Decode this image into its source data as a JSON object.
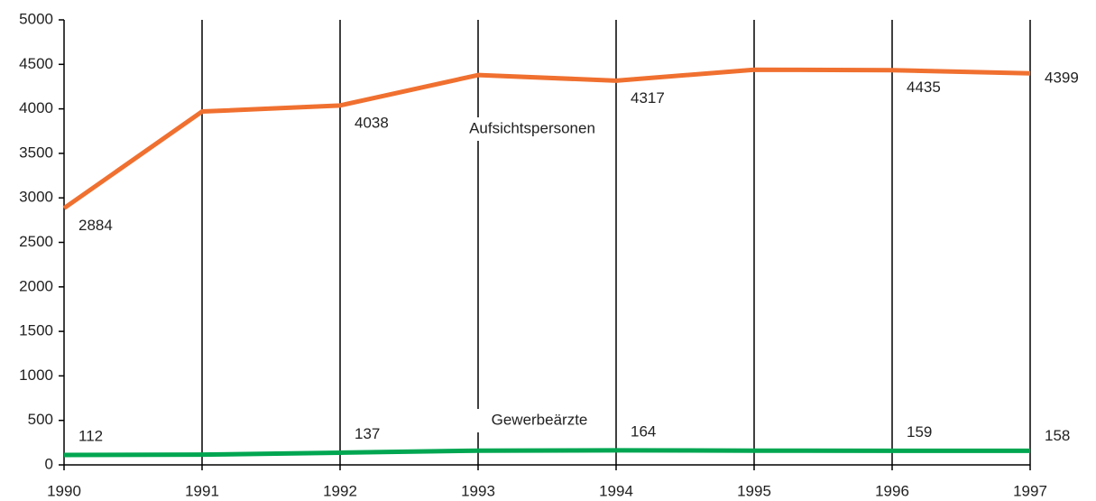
{
  "chart_data": {
    "type": "line",
    "categories": [
      "1990",
      "1991",
      "1992",
      "1993",
      "1994",
      "1995",
      "1996",
      "1997"
    ],
    "series": [
      {
        "name": "Aufsichtspersonen",
        "color": "#f07030",
        "values": [
          2884,
          3970,
          4038,
          4380,
          4317,
          4440,
          4435,
          4399
        ]
      },
      {
        "name": "Gewerbeärzte",
        "color": "#00a651",
        "values": [
          112,
          115,
          137,
          160,
          164,
          160,
          159,
          158
        ]
      }
    ],
    "ylim": [
      0,
      5000
    ],
    "yticks": [
      0,
      500,
      1000,
      1500,
      2000,
      2500,
      3000,
      3500,
      4000,
      4500,
      5000
    ],
    "grid": true
  }
}
